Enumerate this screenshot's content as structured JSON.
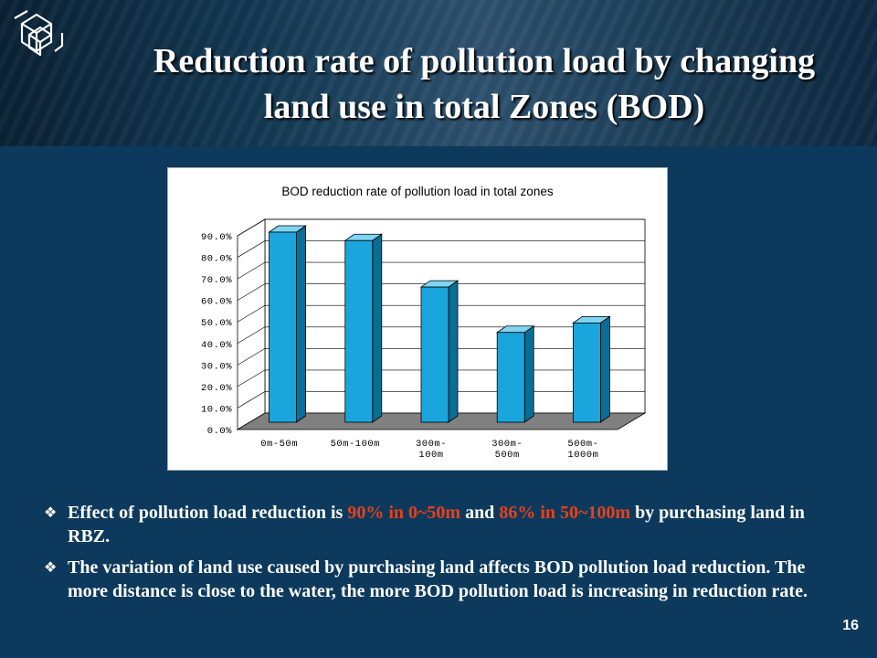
{
  "title": {
    "line1": "Reduction rate of pollution load by changing",
    "line2": "land use in total Zones (BOD)"
  },
  "chart_data": {
    "type": "bar",
    "title": "BOD reduction rate of pollution load in total zones",
    "categories": [
      [
        "0m-50m"
      ],
      [
        "50m-100m"
      ],
      [
        "300m-",
        "100m"
      ],
      [
        "300m-",
        "500m"
      ],
      [
        "500m-",
        "1000m"
      ]
    ],
    "values": [
      90.0,
      86.0,
      64.0,
      42.5,
      47.0
    ],
    "ylim": [
      0,
      90
    ],
    "yticks": [
      "0.0%",
      "10.0%",
      "20.0%",
      "30.0%",
      "40.0%",
      "50.0%",
      "60.0%",
      "70.0%",
      "80.0%",
      "90.0%"
    ],
    "grid": true,
    "colors": {
      "bar_front": "#1aa6dc",
      "bar_side": "#0a6d94",
      "bar_top": "#7fd4f2",
      "floor": "#808080"
    }
  },
  "bullets": [
    {
      "parts": [
        {
          "text": "Effect of pollution load reduction is ",
          "highlight": false
        },
        {
          "text": "90% in 0~50m",
          "highlight": true
        },
        {
          "text": " and ",
          "highlight": false
        },
        {
          "text": "86% in 50~100m",
          "highlight": true
        },
        {
          "text": " by purchasing land in RBZ.",
          "highlight": false
        }
      ]
    },
    {
      "parts": [
        {
          "text": "The variation of land use caused by purchasing land affects BOD pollution load reduction. The more distance is close to the water, the more BOD pollution load is increasing in reduction rate.",
          "highlight": false
        }
      ]
    }
  ],
  "bullet_icon": "four-diamond-bullet-icon",
  "page_number": "16",
  "colors": {
    "background": "#0d3a5c",
    "highlight": "#e8401c",
    "text": "#ffffff"
  }
}
